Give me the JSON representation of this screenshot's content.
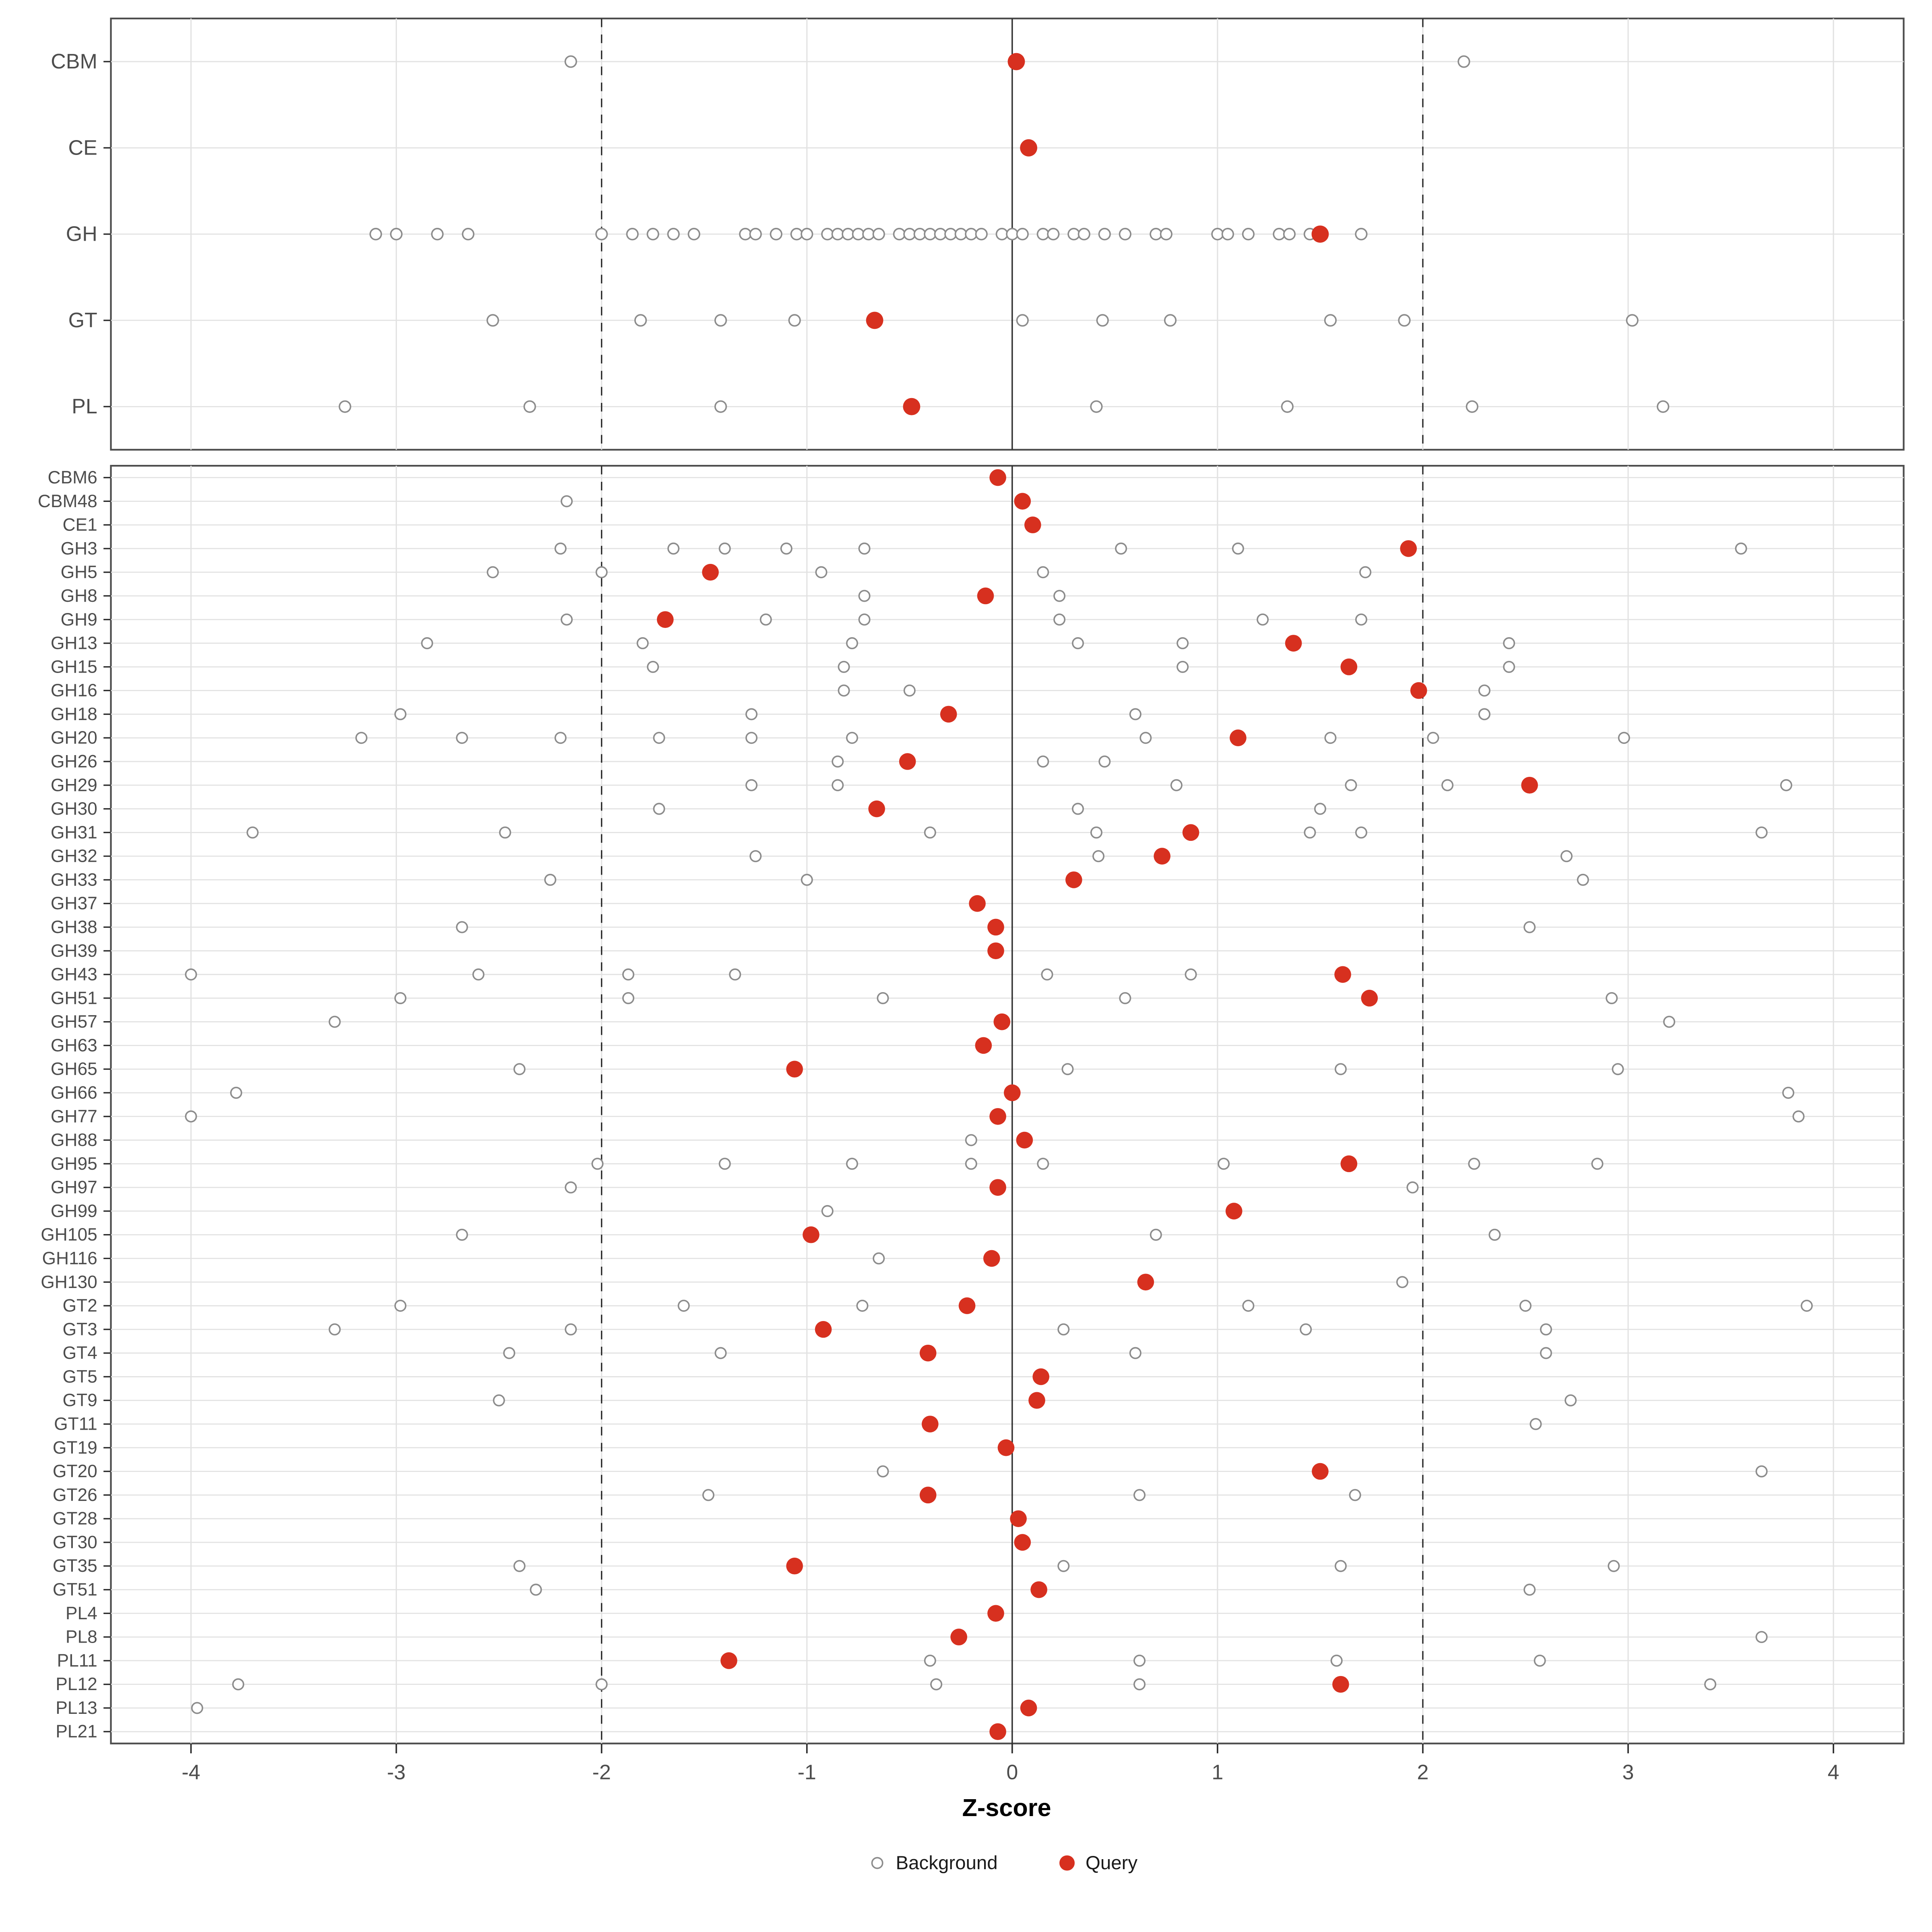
{
  "chart_data": {
    "type": "scatter",
    "title": "",
    "xlabel": "Z-score",
    "ylabel": "",
    "xlim": [
      -4.4,
      4.4
    ],
    "x_ticks": [
      -4,
      -3,
      -2,
      -1,
      0,
      1,
      2,
      3,
      4
    ],
    "grid": true,
    "reference_lines": {
      "solid": [
        0
      ],
      "dashed": [
        -2,
        2
      ]
    },
    "legend": {
      "position": "bottom",
      "background_label": "Background",
      "query_label": "Query"
    },
    "colors": {
      "query": "#D7301F",
      "background_stroke": "#8C8C8C",
      "grid": "#E2E2E2",
      "border": "#4D4D4D",
      "axis_text": "#4D4D4D",
      "ref_line": "#2B2B2B"
    },
    "top_panel": {
      "rows": [
        {
          "label": "CBM",
          "query": 0.02,
          "background": [
            -2.15,
            2.2
          ]
        },
        {
          "label": "CE",
          "query": 0.08,
          "background": []
        },
        {
          "label": "GH",
          "query": 1.5,
          "background": [
            -3.1,
            -3.0,
            -2.8,
            -2.65,
            -2.0,
            -1.85,
            -1.75,
            -1.65,
            -1.55,
            -1.3,
            -1.25,
            -1.15,
            -1.05,
            -1.0,
            -0.9,
            -0.85,
            -0.8,
            -0.75,
            -0.7,
            -0.65,
            -0.55,
            -0.5,
            -0.45,
            -0.4,
            -0.35,
            -0.3,
            -0.25,
            -0.2,
            -0.15,
            -0.05,
            0.0,
            0.05,
            0.15,
            0.2,
            0.3,
            0.35,
            0.45,
            0.55,
            0.7,
            0.75,
            1.0,
            1.05,
            1.15,
            1.3,
            1.35,
            1.45,
            1.7
          ]
        },
        {
          "label": "GT",
          "query": -0.67,
          "background": [
            -2.53,
            -1.81,
            -1.42,
            -1.06,
            0.05,
            0.44,
            0.77,
            1.55,
            1.91,
            3.02
          ]
        },
        {
          "label": "PL",
          "query": -0.49,
          "background": [
            -3.25,
            -2.35,
            -1.42,
            0.41,
            1.34,
            2.24,
            3.17
          ]
        }
      ]
    },
    "bottom_panel": {
      "rows": [
        {
          "label": "CBM6",
          "query": -0.07,
          "background": []
        },
        {
          "label": "CBM48",
          "query": 0.05,
          "background": [
            -2.17
          ]
        },
        {
          "label": "CE1",
          "query": 0.1,
          "background": []
        },
        {
          "label": "GH3",
          "query": 1.93,
          "background": [
            -2.2,
            -1.65,
            -1.4,
            -1.1,
            -0.72,
            0.53,
            1.1,
            3.55
          ]
        },
        {
          "label": "GH5",
          "query": -1.47,
          "background": [
            -2.53,
            -2.0,
            -0.93,
            0.15,
            1.72
          ]
        },
        {
          "label": "GH8",
          "query": -0.13,
          "background": [
            -0.72,
            0.23
          ]
        },
        {
          "label": "GH9",
          "query": -1.69,
          "background": [
            -2.17,
            -1.2,
            -0.72,
            0.23,
            1.22,
            1.7
          ]
        },
        {
          "label": "GH13",
          "query": 1.37,
          "background": [
            -2.85,
            -1.8,
            -0.78,
            0.32,
            0.83,
            2.42
          ]
        },
        {
          "label": "GH15",
          "query": 1.64,
          "background": [
            -1.75,
            -0.82,
            0.83,
            2.42
          ]
        },
        {
          "label": "GH16",
          "query": 1.98,
          "background": [
            -0.82,
            -0.5,
            2.3
          ]
        },
        {
          "label": "GH18",
          "query": -0.31,
          "background": [
            -2.98,
            -1.27,
            0.6,
            2.3
          ]
        },
        {
          "label": "GH20",
          "query": 1.1,
          "background": [
            -3.17,
            -2.68,
            -2.2,
            -1.72,
            -1.27,
            -0.78,
            0.65,
            1.55,
            2.05,
            2.98
          ]
        },
        {
          "label": "GH26",
          "query": -0.51,
          "background": [
            -0.85,
            0.15,
            0.45
          ]
        },
        {
          "label": "GH29",
          "query": 2.52,
          "background": [
            -1.27,
            -0.85,
            0.8,
            1.65,
            2.12,
            3.77
          ]
        },
        {
          "label": "GH30",
          "query": -0.66,
          "background": [
            -1.72,
            0.32,
            1.5
          ]
        },
        {
          "label": "GH31",
          "query": 0.87,
          "background": [
            -3.7,
            -2.47,
            -0.4,
            0.41,
            1.45,
            1.7,
            3.65
          ]
        },
        {
          "label": "GH32",
          "query": 0.73,
          "background": [
            -1.25,
            0.42,
            2.7
          ]
        },
        {
          "label": "GH33",
          "query": 0.3,
          "background": [
            -2.25,
            -1.0,
            2.78
          ]
        },
        {
          "label": "GH37",
          "query": -0.17,
          "background": []
        },
        {
          "label": "GH38",
          "query": -0.08,
          "background": [
            -2.68,
            2.52
          ]
        },
        {
          "label": "GH39",
          "query": -0.08,
          "background": []
        },
        {
          "label": "GH43",
          "query": 1.61,
          "background": [
            -4.0,
            -2.6,
            -1.87,
            -1.35,
            0.17,
            0.87
          ]
        },
        {
          "label": "GH51",
          "query": 1.74,
          "background": [
            -2.98,
            -1.87,
            -0.63,
            0.55,
            2.92
          ]
        },
        {
          "label": "GH57",
          "query": -0.05,
          "background": [
            -3.3,
            3.2
          ]
        },
        {
          "label": "GH63",
          "query": -0.14,
          "background": []
        },
        {
          "label": "GH65",
          "query": -1.06,
          "background": [
            -2.4,
            0.27,
            1.6,
            2.95
          ]
        },
        {
          "label": "GH66",
          "query": 0.0,
          "background": [
            -3.78,
            3.78
          ]
        },
        {
          "label": "GH77",
          "query": -0.07,
          "background": [
            -4.0,
            3.83
          ]
        },
        {
          "label": "GH88",
          "query": 0.06,
          "background": [
            -0.2
          ]
        },
        {
          "label": "GH95",
          "query": 1.64,
          "background": [
            -2.02,
            -1.4,
            -0.78,
            -0.2,
            0.15,
            1.03,
            2.25,
            2.85
          ]
        },
        {
          "label": "GH97",
          "query": -0.07,
          "background": [
            -2.15,
            1.95
          ]
        },
        {
          "label": "GH99",
          "query": 1.08,
          "background": [
            -0.9
          ]
        },
        {
          "label": "GH105",
          "query": -0.98,
          "background": [
            -2.68,
            0.7,
            2.35
          ]
        },
        {
          "label": "GH116",
          "query": -0.1,
          "background": [
            -0.65
          ]
        },
        {
          "label": "GH130",
          "query": 0.65,
          "background": [
            1.9
          ]
        },
        {
          "label": "GT2",
          "query": -0.22,
          "background": [
            -2.98,
            -1.6,
            -0.73,
            1.15,
            2.5,
            3.87
          ]
        },
        {
          "label": "GT3",
          "query": -0.92,
          "background": [
            -3.3,
            -2.15,
            0.25,
            1.43,
            2.6
          ]
        },
        {
          "label": "GT4",
          "query": -0.41,
          "background": [
            -2.45,
            -1.42,
            0.6,
            2.6
          ]
        },
        {
          "label": "GT5",
          "query": 0.14,
          "background": []
        },
        {
          "label": "GT9",
          "query": 0.12,
          "background": [
            -2.5,
            2.72
          ]
        },
        {
          "label": "GT11",
          "query": -0.4,
          "background": [
            2.55
          ]
        },
        {
          "label": "GT19",
          "query": -0.03,
          "background": []
        },
        {
          "label": "GT20",
          "query": 1.5,
          "background": [
            -0.63,
            3.65
          ]
        },
        {
          "label": "GT26",
          "query": -0.41,
          "background": [
            -1.48,
            0.62,
            1.67
          ]
        },
        {
          "label": "GT28",
          "query": 0.03,
          "background": []
        },
        {
          "label": "GT30",
          "query": 0.05,
          "background": []
        },
        {
          "label": "GT35",
          "query": -1.06,
          "background": [
            -2.4,
            0.25,
            1.6,
            2.93
          ]
        },
        {
          "label": "GT51",
          "query": 0.13,
          "background": [
            -2.32,
            2.52
          ]
        },
        {
          "label": "PL4",
          "query": -0.08,
          "background": []
        },
        {
          "label": "PL8",
          "query": -0.26,
          "background": [
            3.65
          ]
        },
        {
          "label": "PL11",
          "query": -1.38,
          "background": [
            -0.4,
            0.62,
            1.58,
            2.57
          ]
        },
        {
          "label": "PL12",
          "query": 1.6,
          "background": [
            -3.77,
            -2.0,
            -0.37,
            0.62,
            3.4
          ]
        },
        {
          "label": "PL13",
          "query": 0.08,
          "background": [
            -3.97
          ]
        },
        {
          "label": "PL21",
          "query": -0.07,
          "background": []
        }
      ]
    }
  }
}
